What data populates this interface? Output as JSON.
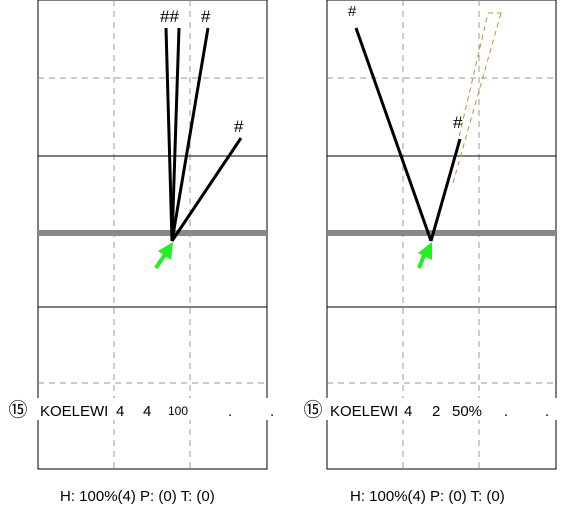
{
  "panels": [
    {
      "row": {
        "num": "⑮",
        "name": "KOELEWI",
        "c1": "4",
        "c2": "4",
        "c3": "100",
        "dot1": ".",
        "dot2": "."
      },
      "hash_labels": [
        "##",
        "#",
        "#"
      ],
      "footer": "H: 100%(4)  P: (0)  T: (0)"
    },
    {
      "row": {
        "num": "⑮",
        "name": "KOELEWI",
        "c1": "4",
        "c2": "2",
        "c3": "50%",
        "dot1": ".",
        "dot2": "."
      },
      "hash_labels": [
        "#",
        "#"
      ],
      "footer": "H: 100%(4)  P: (0)  T: (0)"
    }
  ],
  "colors": {
    "arrow": "#22ee22",
    "ghost_line": "#c8902a",
    "thick_band": "#888888",
    "grid_dash": "#999999"
  }
}
